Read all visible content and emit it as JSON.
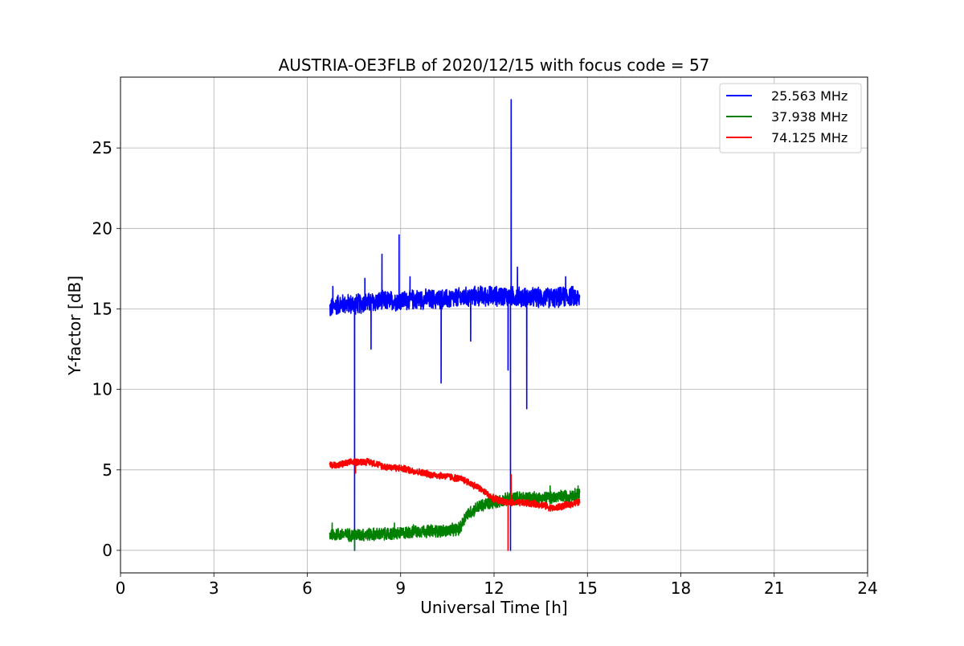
{
  "chart_data": {
    "type": "line",
    "title": "AUSTRIA-OE3FLB of 2020/12/15 with focus code = 57",
    "xlabel": "Universal Time [h]",
    "ylabel": "Y-factor [dB]",
    "xlim": [
      0,
      24
    ],
    "ylim": [
      -1.4,
      29.4
    ],
    "xticks": [
      0,
      3,
      6,
      9,
      12,
      15,
      18,
      21,
      24
    ],
    "yticks": [
      0,
      5,
      10,
      15,
      20,
      25
    ],
    "grid": true,
    "legend_position": "top-right",
    "series": [
      {
        "name": "25.563 MHz",
        "color": "#0000ff",
        "noise": 0.7,
        "points": [
          [
            6.72,
            15.0
          ],
          [
            7.0,
            15.3
          ],
          [
            7.5,
            15.3
          ],
          [
            8.0,
            15.4
          ],
          [
            8.5,
            15.5
          ],
          [
            9.0,
            15.5
          ],
          [
            9.5,
            15.6
          ],
          [
            10.0,
            15.6
          ],
          [
            10.5,
            15.6
          ],
          [
            11.0,
            15.7
          ],
          [
            11.5,
            15.8
          ],
          [
            12.0,
            15.8
          ],
          [
            12.5,
            15.8
          ],
          [
            13.0,
            15.7
          ],
          [
            13.5,
            15.7
          ],
          [
            14.0,
            15.7
          ],
          [
            14.5,
            15.8
          ],
          [
            14.75,
            15.6
          ]
        ],
        "spikes": [
          [
            6.82,
            16.4
          ],
          [
            7.52,
            0.0
          ],
          [
            7.85,
            16.9
          ],
          [
            8.05,
            12.5
          ],
          [
            8.4,
            18.4
          ],
          [
            8.95,
            19.6
          ],
          [
            9.3,
            17.0
          ],
          [
            10.3,
            10.4
          ],
          [
            11.25,
            13.0
          ],
          [
            12.45,
            11.2
          ],
          [
            12.53,
            0.0
          ],
          [
            12.55,
            28.0
          ],
          [
            12.75,
            17.6
          ],
          [
            13.05,
            8.8
          ],
          [
            14.3,
            17.0
          ]
        ]
      },
      {
        "name": "37.938 MHz",
        "color": "#008000",
        "noise": 0.45,
        "points": [
          [
            6.72,
            1.0
          ],
          [
            7.0,
            1.0
          ],
          [
            7.5,
            0.95
          ],
          [
            8.0,
            1.0
          ],
          [
            8.5,
            1.0
          ],
          [
            9.0,
            1.05
          ],
          [
            9.5,
            1.2
          ],
          [
            10.0,
            1.2
          ],
          [
            10.5,
            1.2
          ],
          [
            10.9,
            1.35
          ],
          [
            11.1,
            2.2
          ],
          [
            11.5,
            2.7
          ],
          [
            12.0,
            3.0
          ],
          [
            12.5,
            3.2
          ],
          [
            13.0,
            3.3
          ],
          [
            13.5,
            3.25
          ],
          [
            14.0,
            3.3
          ],
          [
            14.75,
            3.5
          ]
        ],
        "spikes": [
          [
            6.8,
            1.7
          ],
          [
            7.52,
            0.0
          ],
          [
            8.8,
            1.7
          ],
          [
            13.8,
            4.0
          ],
          [
            14.7,
            4.0
          ]
        ]
      },
      {
        "name": "74.125 MHz",
        "color": "#ff0000",
        "noise": 0.25,
        "points": [
          [
            6.72,
            5.3
          ],
          [
            7.0,
            5.3
          ],
          [
            7.5,
            5.5
          ],
          [
            8.0,
            5.5
          ],
          [
            8.5,
            5.2
          ],
          [
            9.0,
            5.1
          ],
          [
            9.5,
            4.9
          ],
          [
            10.0,
            4.7
          ],
          [
            10.5,
            4.6
          ],
          [
            11.0,
            4.4
          ],
          [
            11.5,
            3.9
          ],
          [
            12.0,
            3.2
          ],
          [
            12.5,
            2.95
          ],
          [
            13.0,
            2.95
          ],
          [
            13.5,
            2.85
          ],
          [
            13.9,
            2.6
          ],
          [
            14.3,
            2.8
          ],
          [
            14.75,
            3.0
          ]
        ],
        "spikes": [
          [
            7.55,
            4.8
          ],
          [
            12.45,
            0.0
          ],
          [
            12.55,
            4.7
          ]
        ]
      }
    ]
  }
}
